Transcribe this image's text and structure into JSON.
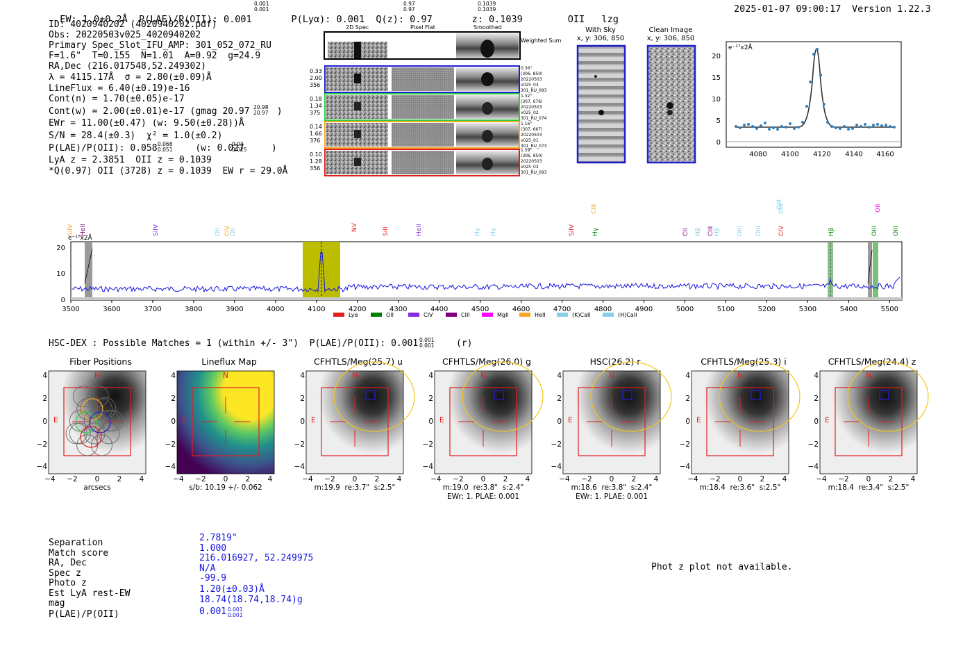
{
  "header": {
    "line": "EW: 1.0±0.2Å  P(LAE)/P(OII): 0.001       P(Lyα): 0.001  Q(z): 0.97       z: 0.1039        OII   lzg",
    "datetime": "2025-01-07 09:00:17",
    "version": "Version 1.22.3"
  },
  "info": [
    "ID: 4020940202 (4020940202.pdf)",
    "Obs: 20220503v025_4020940202",
    "Primary Spec_Slot_IFU_AMP: 301_052_072_RU",
    "F=1.6\"  T=0.155  N=1.01  A=0.92  g=24.9",
    "RA,Dec (216.017548,52.249302)",
    "λ = 4115.17Å  σ = 2.80(±0.09)Å",
    "LineFlux = 6.40(±0.19)e-16",
    "Cont(n) = 1.70(±0.05)e-17",
    "Cont(w) = 2.00(±0.01)e-17 (gmag 20.97     )",
    "EWr = 11.00(±0.47) (w: 9.50(±0.28))Å",
    "S/N = 28.4(±0.3)  χ² = 1.0(±0.2)",
    "P(LAE)/P(OII): 0.058       (w: 0.027     )",
    "LyA z = 2.3851  OII z = 0.1039",
    "*Q(0.97) OII (3728) z = 0.1039  EW r = 29.0Å"
  ],
  "cutouts": {
    "col_headers": [
      "2D Spec",
      "Pixel Flat",
      "Smoothed"
    ],
    "weighted_label": "Weighted Sum",
    "rows": [
      {
        "left": [
          "0.33",
          "2.00",
          "356"
        ],
        "right": [
          "0.36\"",
          "(306, 850)",
          "20220503",
          "v025_03",
          "301_RU_093"
        ],
        "color": "#1f1fd0"
      },
      {
        "left": [
          "0.18",
          "1.34",
          "375"
        ],
        "right": [
          "1.32\"",
          "(307, 676)",
          "20220503",
          "v025_02",
          "301_RU_074"
        ],
        "color": "#2ecc40"
      },
      {
        "left": [
          "0.14",
          "1.66",
          "376"
        ],
        "right": [
          "1.16\"",
          "(307, 667)",
          "20220503",
          "v025_01",
          "301_RU_073"
        ],
        "color": "#f5a623"
      },
      {
        "left": [
          "0.10",
          "1.28",
          "356"
        ],
        "right": [
          "1.59\"",
          "(306, 850)",
          "20220503",
          "v025_03",
          "301_RU_093"
        ],
        "color": "#e02020"
      }
    ]
  },
  "sky": {
    "with_sky_title": "With Sky",
    "with_sky_coords": "x, y: 306, 850",
    "clean_title": "Clean Image",
    "clean_coords": "x, y: 306, 850"
  },
  "zoom_plot": {
    "unit": "e⁻¹⁷x2Å",
    "x_ticks": [
      "4080",
      "4100",
      "4120",
      "4140",
      "4160"
    ],
    "y_ticks": [
      "0",
      "5",
      "10",
      "15",
      "20"
    ]
  },
  "full_spectrum": {
    "unit": "e⁻¹⁷x2Å",
    "x_ticks": [
      "3500",
      "3600",
      "3700",
      "3800",
      "3900",
      "4000",
      "4100",
      "4200",
      "4300",
      "4400",
      "4500",
      "4600",
      "4700",
      "4800",
      "4900",
      "5000",
      "5100",
      "5200",
      "5300",
      "5400",
      "5500"
    ],
    "y_ticks": [
      "0",
      "10",
      "20"
    ],
    "line_labels": [
      {
        "t": "SiIV",
        "c": "#f5a623"
      },
      {
        "t": "HeII",
        "c": "#800080"
      },
      {
        "t": "SiIV",
        "c": "#8a2be2"
      },
      {
        "t": "OII",
        "c": "#87ceeb"
      },
      {
        "t": "CIV",
        "c": "#f5a623"
      },
      {
        "t": "OII",
        "c": "#87ceeb"
      },
      {
        "t": "NV",
        "c": "#e02020"
      },
      {
        "t": "SiII",
        "c": "#e02020"
      },
      {
        "t": "HeII",
        "c": "#8a2be2"
      },
      {
        "t": "Hγ",
        "c": "#87ceeb"
      },
      {
        "t": "Hγ",
        "c": "#87ceeb"
      },
      {
        "t": "SiIV",
        "c": "#e02020"
      },
      {
        "t": "CIII",
        "c": "#f5a623"
      },
      {
        "t": "Hγ",
        "c": "#008000"
      },
      {
        "t": "CII",
        "c": "#800080"
      },
      {
        "t": "Hβ",
        "c": "#87ceeb"
      },
      {
        "t": "CIII",
        "c": "#800080"
      },
      {
        "t": "Hβ",
        "c": "#87ceeb"
      },
      {
        "t": "OIII",
        "c": "#87ceeb"
      },
      {
        "t": "OIII",
        "c": "#87ceeb"
      },
      {
        "t": "OIII",
        "c": "#87ceeb"
      },
      {
        "t": "OIII",
        "c": "#87ceeb"
      },
      {
        "t": "CIV",
        "c": "#e02020"
      },
      {
        "t": "Hβ",
        "c": "#008000"
      },
      {
        "t": "OII",
        "c": "#ff00ff"
      },
      {
        "t": "OIII",
        "c": "#008000"
      },
      {
        "t": "OIII",
        "c": "#008000"
      }
    ],
    "legend": [
      {
        "t": "Lyα",
        "c": "#e02020"
      },
      {
        "t": "OII",
        "c": "#008000"
      },
      {
        "t": "CIV",
        "c": "#8a2be2"
      },
      {
        "t": "CIII",
        "c": "#800080"
      },
      {
        "t": "MgII",
        "c": "#ff00ff"
      },
      {
        "t": "HeII",
        "c": "#f5a623"
      },
      {
        "t": "(K)CaII",
        "c": "#87ceeb"
      },
      {
        "t": "(H)CaII",
        "c": "#87ceeb"
      }
    ]
  },
  "hsc": {
    "heading": "HSC-DEX : Possible Matches = 1 (within +/- 3\")  P(LAE)/P(OII): 0.001       (r)",
    "panels": [
      {
        "title": "Fiber Positions",
        "cap1": "arcsecs",
        "cap2": ""
      },
      {
        "title": "Lineflux Map",
        "cap1": "s/b: 10.19 +/- 0.062",
        "cap2": ""
      },
      {
        "title": "CFHTLS/Meg(25.7) u",
        "cap1": "m:19.9  re:3.7\"  s:2.5\"",
        "cap2": ""
      },
      {
        "title": "CFHTLS/Meg(26.0) g",
        "cap1": "m:19.0  re:3.8\"  s:2.4\"",
        "cap2": "EWr: 1. PLAE: 0.001"
      },
      {
        "title": "HSC(26.2) r",
        "cap1": "m:18.6  re:3.8\"  s:2.4\"",
        "cap2": "EWr: 1. PLAE: 0.001"
      },
      {
        "title": "CFHTLS/Meg(25.3) i",
        "cap1": "m:18.4  re:3.6\"  s:2.5\"",
        "cap2": ""
      },
      {
        "title": "CFHTLS/Meg(24.4) z",
        "cap1": "m:18.4  re:3.4\"  s:2.5\"",
        "cap2": ""
      }
    ],
    "axis_ticks": [
      "−4",
      "−2",
      "0",
      "2",
      "4"
    ],
    "n_label": "N",
    "e_label": "E"
  },
  "table": {
    "labels": [
      "Separation",
      "Match score",
      "RA, Dec",
      "Spec z",
      "Photo z",
      "Est LyA rest-EW",
      "mag",
      "P(LAE)/P(OII)"
    ],
    "values": [
      "2.7819\"",
      "1.000",
      "216.016927, 52.249975",
      "N/A",
      "-99.9",
      "1.20(±0.03)Å",
      "18.74(18.74,18.74)g",
      "0.001"
    ]
  },
  "phot_z_msg": "Phot z plot not available."
}
